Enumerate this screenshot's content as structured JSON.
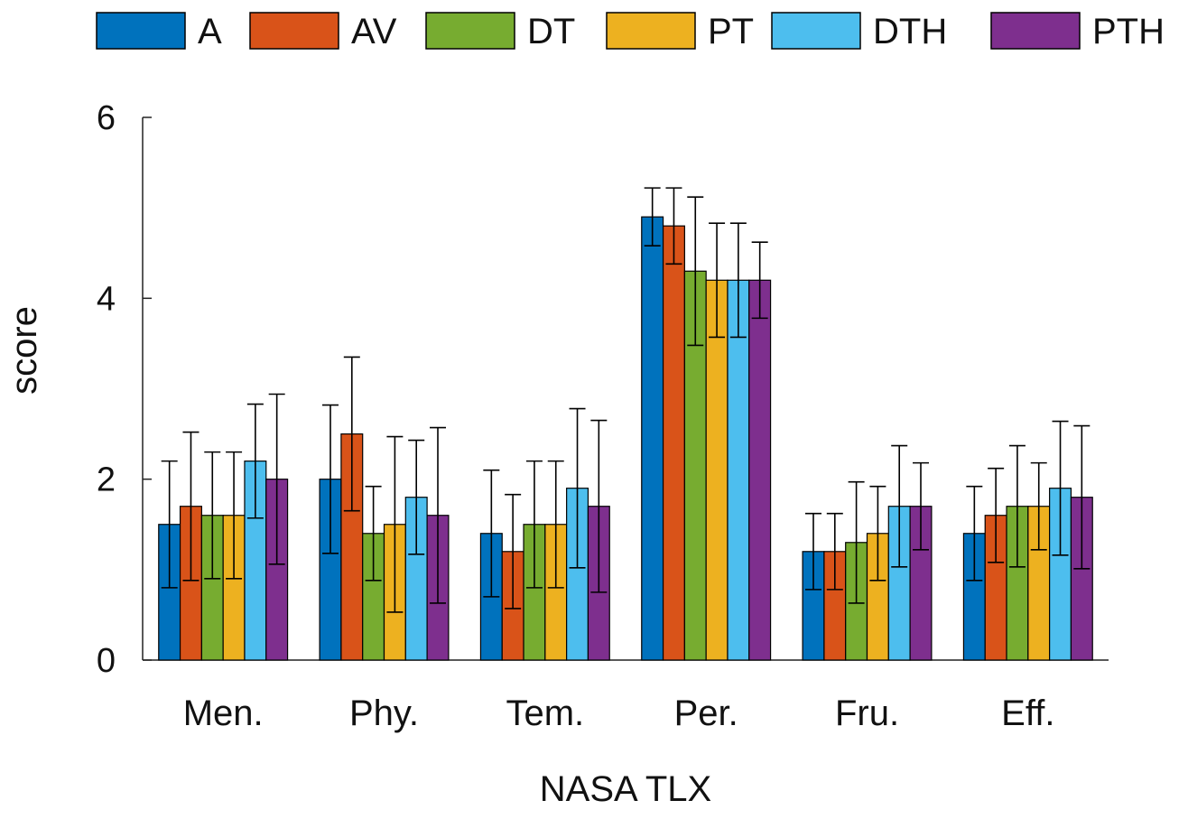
{
  "chart_data": {
    "type": "bar",
    "title": "",
    "xlabel": "NASA TLX",
    "ylabel": "score",
    "ylim": [
      0,
      6
    ],
    "yticks": [
      0,
      2,
      4,
      6
    ],
    "grid": false,
    "legend_position": "top",
    "categories": [
      "Men.",
      "Phy.",
      "Tem.",
      "Per.",
      "Fru.",
      "Eff."
    ],
    "series": [
      {
        "name": "A",
        "color": "#0072BD",
        "values": [
          1.5,
          2.0,
          1.4,
          4.9,
          1.2,
          1.4
        ],
        "error": [
          0.7,
          0.82,
          0.7,
          0.32,
          0.42,
          0.52
        ]
      },
      {
        "name": "AV",
        "color": "#D95319",
        "values": [
          1.7,
          2.5,
          1.2,
          4.8,
          1.2,
          1.6
        ],
        "error": [
          0.82,
          0.85,
          0.63,
          0.42,
          0.42,
          0.52
        ]
      },
      {
        "name": "DT",
        "color": "#77AC30",
        "values": [
          1.6,
          1.4,
          1.5,
          4.3,
          1.3,
          1.7
        ],
        "error": [
          0.7,
          0.52,
          0.7,
          0.82,
          0.67,
          0.67
        ]
      },
      {
        "name": "PT",
        "color": "#EDB120",
        "values": [
          1.6,
          1.5,
          1.5,
          4.2,
          1.4,
          1.7
        ],
        "error": [
          0.7,
          0.97,
          0.7,
          0.63,
          0.52,
          0.48
        ]
      },
      {
        "name": "DTH",
        "color": "#4DBEEE",
        "values": [
          2.2,
          1.8,
          1.9,
          4.2,
          1.7,
          1.9
        ],
        "error": [
          0.63,
          0.63,
          0.88,
          0.63,
          0.67,
          0.74
        ]
      },
      {
        "name": "PTH",
        "color": "#7E2F8E",
        "values": [
          2.0,
          1.6,
          1.7,
          4.2,
          1.7,
          1.8
        ],
        "error": [
          0.94,
          0.97,
          0.95,
          0.42,
          0.48,
          0.79
        ]
      }
    ]
  }
}
